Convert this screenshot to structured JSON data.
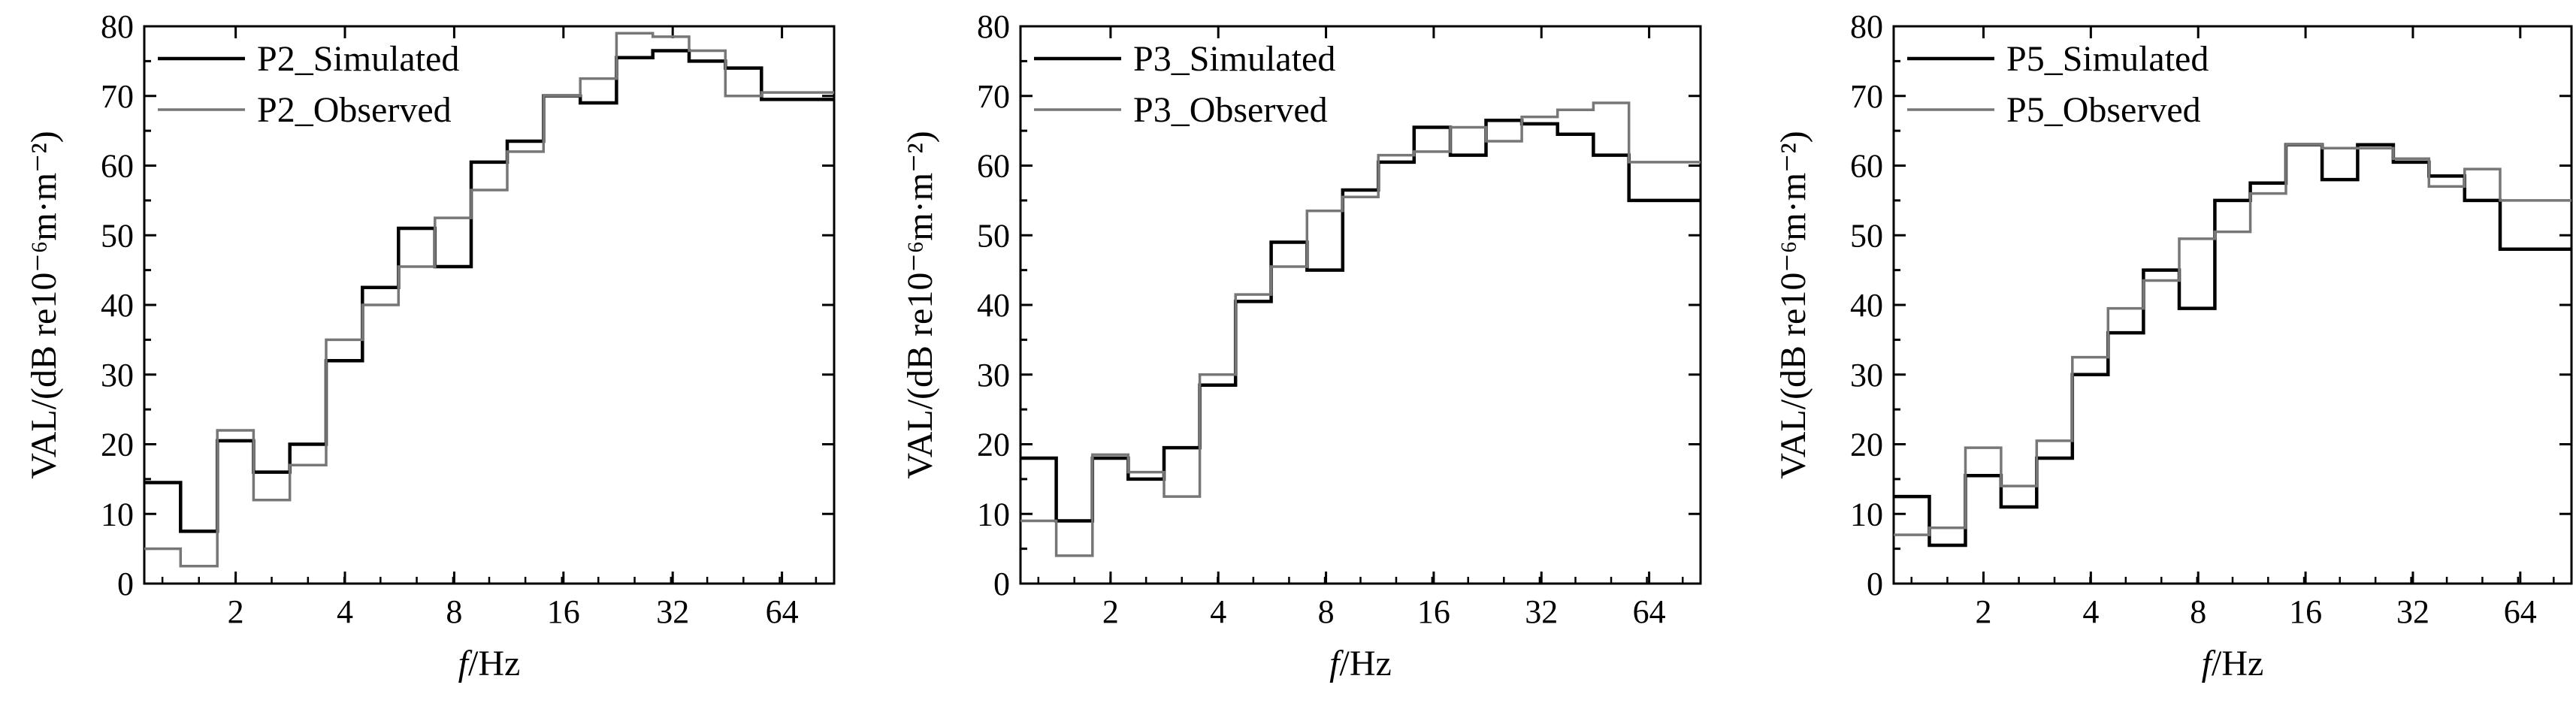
{
  "chart_data": [
    {
      "type": "line",
      "step": true,
      "xscale": "log2",
      "xlabel_italic": "f",
      "xlabel_rest": "/Hz",
      "ylabel": "VAL/(dB re10⁻⁶m·m⁻²)",
      "ylim": [
        0,
        80
      ],
      "yticks": [
        0,
        10,
        20,
        30,
        40,
        50,
        60,
        70,
        80
      ],
      "xlim": [
        1.12,
        89.1
      ],
      "xticks": [
        2,
        4,
        8,
        16,
        32,
        64
      ],
      "xtick_labels": [
        "2",
        "4",
        "8",
        "16",
        "32",
        "64"
      ],
      "legend_position": "top-left",
      "band_edges": [
        1.12,
        1.41,
        1.78,
        2.24,
        2.82,
        3.55,
        4.47,
        5.62,
        7.08,
        8.91,
        11.2,
        14.1,
        17.8,
        22.4,
        28.2,
        35.5,
        44.7,
        56.2,
        70.8,
        89.1
      ],
      "series": [
        {
          "name": "P2_Simulated",
          "color": "#000000",
          "width": 4.5,
          "values": [
            14.5,
            7.5,
            20.5,
            16,
            20,
            32,
            42.5,
            51,
            45.5,
            60.5,
            63.5,
            70,
            69,
            75.5,
            76.5,
            75,
            74,
            69.5,
            69.5
          ]
        },
        {
          "name": "P2_Observed",
          "color": "#777777",
          "width": 3.5,
          "values": [
            5,
            2.5,
            22,
            12,
            17,
            35,
            40,
            45.5,
            52.5,
            56.5,
            62,
            70,
            72.5,
            79,
            78.5,
            76.5,
            70,
            70.5,
            70.5
          ]
        }
      ]
    },
    {
      "type": "line",
      "step": true,
      "xscale": "log2",
      "xlabel_italic": "f",
      "xlabel_rest": "/Hz",
      "ylabel": "VAL/(dB re10⁻⁶m·m⁻²)",
      "ylim": [
        0,
        80
      ],
      "yticks": [
        0,
        10,
        20,
        30,
        40,
        50,
        60,
        70,
        80
      ],
      "xlim": [
        1.12,
        89.1
      ],
      "xticks": [
        2,
        4,
        8,
        16,
        32,
        64
      ],
      "xtick_labels": [
        "2",
        "4",
        "8",
        "16",
        "32",
        "64"
      ],
      "legend_position": "top-left",
      "band_edges": [
        1.12,
        1.41,
        1.78,
        2.24,
        2.82,
        3.55,
        4.47,
        5.62,
        7.08,
        8.91,
        11.2,
        14.1,
        17.8,
        22.4,
        28.2,
        35.5,
        44.7,
        56.2,
        70.8,
        89.1
      ],
      "series": [
        {
          "name": "P3_Simulated",
          "color": "#000000",
          "width": 4.5,
          "values": [
            18,
            9,
            18,
            15,
            19.5,
            28.5,
            40.5,
            49,
            45,
            56.5,
            60.5,
            65.5,
            61.5,
            66.5,
            66,
            64.5,
            61.5,
            55,
            55
          ]
        },
        {
          "name": "P3_Observed",
          "color": "#777777",
          "width": 3.5,
          "values": [
            9,
            4,
            18.5,
            16,
            12.5,
            30,
            41.5,
            45.5,
            53.5,
            55.5,
            61.5,
            62,
            65.5,
            63.5,
            67,
            68,
            69,
            60.5,
            60.5
          ]
        }
      ]
    },
    {
      "type": "line",
      "step": true,
      "xscale": "log2",
      "xlabel_italic": "f",
      "xlabel_rest": "/Hz",
      "ylabel": "VAL/(dB re10⁻⁶m·m⁻²)",
      "ylim": [
        0,
        80
      ],
      "yticks": [
        0,
        10,
        20,
        30,
        40,
        50,
        60,
        70,
        80
      ],
      "xlim": [
        1.12,
        89.1
      ],
      "xticks": [
        2,
        4,
        8,
        16,
        32,
        64
      ],
      "xtick_labels": [
        "2",
        "4",
        "8",
        "16",
        "32",
        "64"
      ],
      "legend_position": "top-left",
      "band_edges": [
        1.12,
        1.41,
        1.78,
        2.24,
        2.82,
        3.55,
        4.47,
        5.62,
        7.08,
        8.91,
        11.2,
        14.1,
        17.8,
        22.4,
        28.2,
        35.5,
        44.7,
        56.2,
        70.8,
        89.1
      ],
      "series": [
        {
          "name": "P5_Simulated",
          "color": "#000000",
          "width": 4.5,
          "values": [
            12.5,
            5.5,
            15.5,
            11,
            18,
            30,
            36,
            45,
            39.5,
            55,
            57.5,
            63,
            58,
            63,
            60.5,
            58.5,
            55,
            48,
            48
          ]
        },
        {
          "name": "P5_Observed",
          "color": "#777777",
          "width": 3.5,
          "values": [
            7,
            8,
            19.5,
            14,
            20.5,
            32.5,
            39.5,
            43.5,
            49.5,
            50.5,
            56,
            63,
            62.5,
            62.5,
            61,
            57,
            59.5,
            55,
            55
          ]
        }
      ]
    }
  ]
}
